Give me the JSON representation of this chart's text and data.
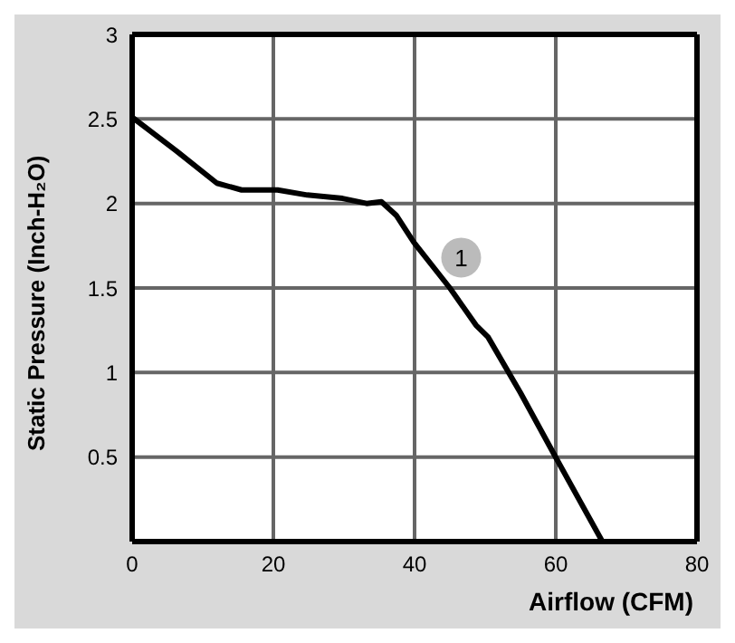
{
  "chart_data": {
    "type": "line",
    "xlabel": "Airflow (CFM)",
    "ylabel": "Static Pressure (Inch-H₂O)",
    "x": [
      0,
      6.3,
      12,
      15.5,
      20.6,
      24.8,
      29.8,
      33.2,
      35.3,
      37.4,
      39.9,
      45,
      48.7,
      50.4,
      55,
      60.1,
      66.6
    ],
    "series": [
      {
        "color": "#000000",
        "values": [
          2.51,
          2.31,
          2.12,
          2.08,
          2.08,
          2.05,
          2.03,
          2.0,
          2.01,
          1.93,
          1.77,
          1.5,
          1.28,
          1.21,
          0.88,
          0.49,
          0
        ]
      }
    ],
    "xlim": [
      0,
      80
    ],
    "xticks": [
      0,
      20,
      40,
      60,
      80
    ],
    "ylim": [
      0,
      3
    ],
    "yticks": [
      0.5,
      1,
      1.5,
      2,
      2.5,
      3
    ],
    "grid": true,
    "legend": false,
    "marker": "none",
    "line_style": "solid",
    "annotations": [
      {
        "text": "1",
        "x": 46.6,
        "y": 1.68
      }
    ]
  }
}
